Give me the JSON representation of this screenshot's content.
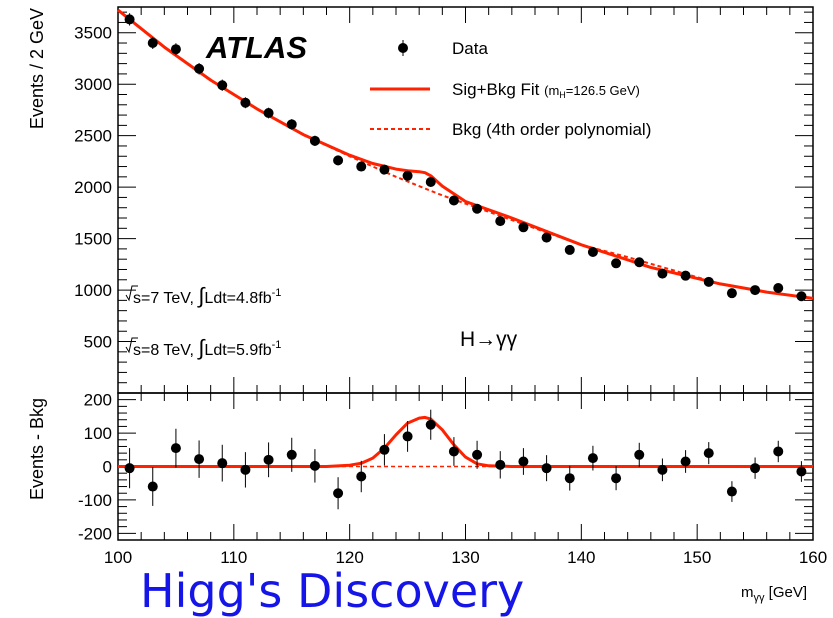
{
  "caption": "Higg's Discovery",
  "chart_data": [
    {
      "type": "scatter",
      "experiment": "ATLAS",
      "ylabel": "Events / 2 GeV",
      "xlim": [
        100,
        160
      ],
      "ylim": [
        0,
        3750
      ],
      "yticks": [
        500,
        1000,
        1500,
        2000,
        2500,
        3000,
        3500
      ],
      "legend_position": "top-right",
      "legend": {
        "data": "Data",
        "fit": "Sig+Bkg Fit",
        "fit_note": "(m",
        "fit_note_sub": "H",
        "fit_note_end": "=126.5 GeV)",
        "bkg": "Bkg (4th order polynomial)"
      },
      "annotations": {
        "lumi7": "s=7 TeV, ",
        "lumi7_b": "Ldt=4.8fb",
        "lumi8": "s=8 TeV, ",
        "lumi8_b": "Ldt=5.9fb",
        "exp": "-1",
        "channel": "H→γγ"
      },
      "series": [
        {
          "name": "Data",
          "x": [
            101,
            103,
            105,
            107,
            109,
            111,
            113,
            115,
            117,
            119,
            121,
            123,
            125,
            127,
            129,
            131,
            133,
            135,
            137,
            139,
            141,
            143,
            145,
            147,
            149,
            151,
            153,
            155,
            157,
            159
          ],
          "y": [
            3630,
            3400,
            3340,
            3150,
            2990,
            2820,
            2720,
            2610,
            2450,
            2260,
            2200,
            2170,
            2110,
            2050,
            1870,
            1790,
            1670,
            1610,
            1510,
            1390,
            1370,
            1260,
            1270,
            1160,
            1140,
            1080,
            970,
            1000,
            1020,
            940
          ],
          "yerr": [
            60,
            58,
            58,
            56,
            55,
            53,
            52,
            51,
            50,
            48,
            47,
            47,
            46,
            45,
            43,
            42,
            41,
            40,
            39,
            37,
            37,
            36,
            36,
            34,
            34,
            33,
            31,
            32,
            32,
            31
          ]
        },
        {
          "name": "Sig+Bkg Fit",
          "color": "#ff2200",
          "x": [
            100,
            104,
            108,
            112,
            116,
            120,
            122,
            124,
            125,
            126,
            126.5,
            127,
            128,
            130,
            134,
            140,
            146,
            152,
            156,
            160
          ],
          "y": [
            3720,
            3360,
            3040,
            2760,
            2510,
            2310,
            2230,
            2175,
            2160,
            2150,
            2140,
            2110,
            2010,
            1860,
            1700,
            1440,
            1220,
            1060,
            980,
            920
          ]
        },
        {
          "name": "Bkg (4th order polynomial)",
          "color": "#ff2200",
          "x": [
            100,
            104,
            108,
            112,
            116,
            120,
            124,
            128,
            132,
            136,
            140,
            144,
            148,
            152,
            156,
            160
          ],
          "y": [
            3720,
            3360,
            3040,
            2760,
            2510,
            2300,
            2100,
            1920,
            1760,
            1600,
            1440,
            1320,
            1190,
            1060,
            980,
            920
          ]
        }
      ]
    },
    {
      "type": "scatter",
      "ylabel": "Events - Bkg",
      "xlabel": "m",
      "xlabel_sub": "γγ",
      "xlabel_unit": " [GeV]",
      "xlim": [
        100,
        160
      ],
      "ylim": [
        -220,
        220
      ],
      "xticks": [
        100,
        110,
        120,
        130,
        140,
        150,
        160
      ],
      "yticks": [
        -200,
        -100,
        0,
        100,
        200
      ],
      "series": [
        {
          "name": "Data",
          "x": [
            101,
            103,
            105,
            107,
            109,
            111,
            113,
            115,
            117,
            119,
            121,
            123,
            125,
            127,
            129,
            131,
            133,
            135,
            137,
            139,
            141,
            143,
            145,
            147,
            149,
            151,
            153,
            155,
            157,
            159
          ],
          "y": [
            -5,
            -60,
            55,
            22,
            10,
            -10,
            20,
            35,
            2,
            -80,
            -30,
            50,
            90,
            125,
            45,
            35,
            5,
            15,
            -5,
            -35,
            25,
            -35,
            35,
            -10,
            15,
            40,
            -75,
            -5,
            45,
            -15
          ],
          "yerr": [
            60,
            58,
            58,
            56,
            55,
            53,
            52,
            51,
            50,
            48,
            47,
            47,
            46,
            45,
            43,
            42,
            41,
            40,
            39,
            37,
            37,
            36,
            36,
            34,
            34,
            33,
            31,
            32,
            32,
            31
          ]
        },
        {
          "name": "Sig+Bkg Fit",
          "color": "#ff2200",
          "x": [
            100,
            118,
            120,
            121,
            122,
            123,
            124,
            125,
            126,
            126.5,
            127,
            128,
            129,
            130,
            131,
            132,
            134,
            160
          ],
          "y": [
            0,
            0,
            4,
            10,
            25,
            55,
            95,
            130,
            145,
            147,
            142,
            110,
            65,
            28,
            8,
            2,
            0,
            0
          ]
        }
      ]
    }
  ]
}
